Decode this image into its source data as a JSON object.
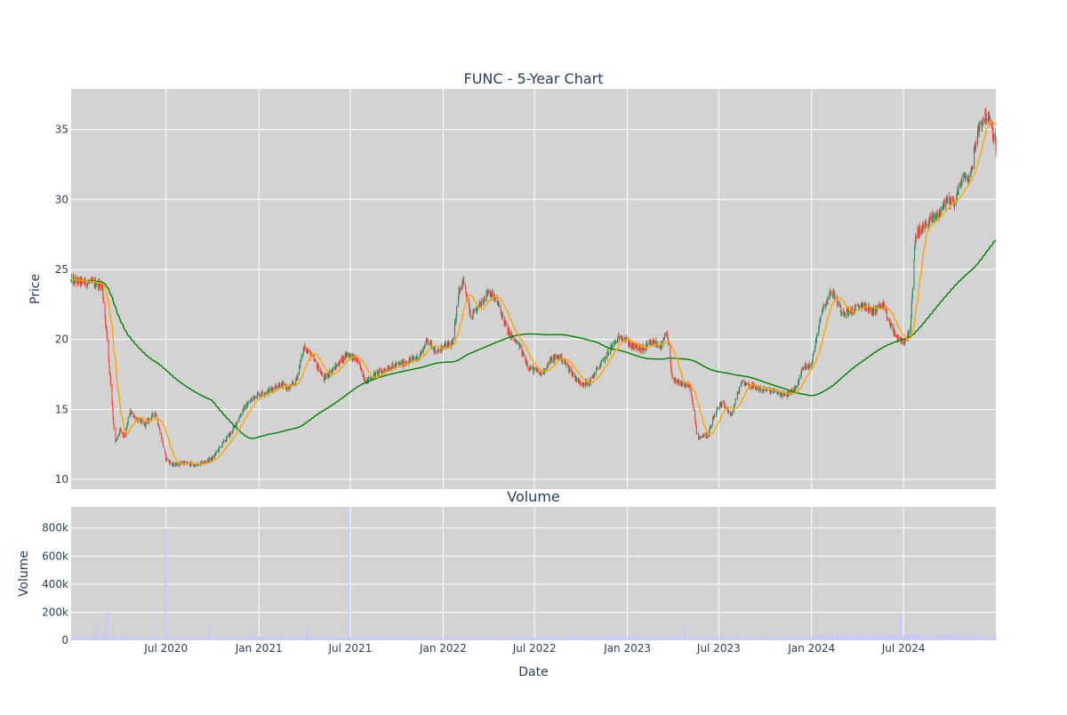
{
  "chart_data": [
    {
      "type": "candlestick",
      "title": "FUNC - 5-Year Chart",
      "xlabel": "",
      "ylabel": "Price",
      "ylim": [
        9.3,
        37.9
      ],
      "yticks": [
        10,
        15,
        20,
        25,
        30,
        35
      ],
      "grid": true,
      "legend": "none",
      "xrange": [
        "2019-12-26",
        "2024-12-31"
      ],
      "xtick_dates": [
        "2020-07-01",
        "2021-01-01",
        "2021-07-01",
        "2022-01-01",
        "2022-07-01",
        "2023-01-01",
        "2023-07-01",
        "2024-01-01",
        "2024-07-01"
      ],
      "price_anchors": {
        "x": [
          "2019-12-26",
          "2020-01-15",
          "2020-02-15",
          "2020-02-25",
          "2020-03-05",
          "2020-03-15",
          "2020-03-22",
          "2020-04-01",
          "2020-04-10",
          "2020-04-20",
          "2020-05-05",
          "2020-05-20",
          "2020-06-10",
          "2020-07-01",
          "2020-07-15",
          "2020-08-01",
          "2020-09-01",
          "2020-10-01",
          "2020-10-20",
          "2020-11-10",
          "2020-12-01",
          "2020-12-25",
          "2021-01-20",
          "2021-02-10",
          "2021-03-01",
          "2021-03-15",
          "2021-04-01",
          "2021-04-20",
          "2021-05-10",
          "2021-06-01",
          "2021-06-25",
          "2021-07-15",
          "2021-08-01",
          "2021-08-20",
          "2021-09-15",
          "2021-10-15",
          "2021-11-15",
          "2021-12-01",
          "2021-12-20",
          "2022-01-01",
          "2022-01-20",
          "2022-02-01",
          "2022-02-10",
          "2022-02-25",
          "2022-03-15",
          "2022-04-01",
          "2022-04-20",
          "2022-05-10",
          "2022-06-01",
          "2022-06-20",
          "2022-07-15",
          "2022-08-01",
          "2022-08-20",
          "2022-09-10",
          "2022-09-25",
          "2022-10-15",
          "2022-11-01",
          "2022-11-15",
          "2022-12-01",
          "2022-12-20",
          "2023-01-10",
          "2023-02-01",
          "2023-02-20",
          "2023-03-10",
          "2023-03-20",
          "2023-04-01",
          "2023-04-20",
          "2023-05-05",
          "2023-05-20",
          "2023-06-10",
          "2023-06-25",
          "2023-07-10",
          "2023-07-25",
          "2023-08-15",
          "2023-09-15",
          "2023-10-15",
          "2023-11-10",
          "2023-12-01",
          "2023-12-15",
          "2024-01-01",
          "2024-01-20",
          "2024-02-10",
          "2024-03-01",
          "2024-03-20",
          "2024-04-10",
          "2024-05-01",
          "2024-05-20",
          "2024-06-05",
          "2024-06-20",
          "2024-07-05",
          "2024-07-15",
          "2024-07-25",
          "2024-08-05",
          "2024-08-20",
          "2024-09-05",
          "2024-09-25",
          "2024-10-10",
          "2024-10-25",
          "2024-11-10",
          "2024-11-25",
          "2024-12-10",
          "2024-12-20",
          "2024-12-31"
        ],
        "y": [
          24.2,
          24.1,
          24.0,
          23.9,
          20.5,
          16.0,
          12.5,
          13.5,
          13.0,
          14.8,
          14.3,
          13.9,
          14.8,
          11.5,
          11.0,
          11.2,
          11.0,
          11.5,
          12.5,
          13.5,
          15.0,
          16.0,
          16.3,
          16.8,
          16.5,
          17.0,
          19.5,
          18.5,
          17.2,
          18.0,
          19.0,
          18.5,
          17.0,
          17.5,
          18.0,
          18.3,
          18.8,
          20.0,
          19.0,
          19.5,
          19.7,
          23.5,
          24.2,
          21.5,
          22.5,
          23.5,
          22.5,
          20.5,
          19.5,
          18.0,
          17.5,
          18.5,
          18.8,
          17.8,
          17.0,
          16.8,
          17.8,
          18.5,
          19.5,
          20.3,
          19.5,
          19.3,
          19.8,
          19.5,
          20.5,
          17.0,
          16.8,
          16.6,
          13.0,
          13.2,
          14.8,
          15.5,
          14.5,
          17.0,
          16.5,
          16.3,
          16.0,
          16.5,
          18.0,
          18.3,
          22.0,
          23.5,
          22.0,
          22.0,
          22.5,
          22.0,
          22.5,
          21.0,
          20.0,
          19.8,
          21.0,
          27.5,
          27.8,
          28.5,
          28.8,
          30.0,
          29.8,
          31.5,
          31.5,
          35.0,
          36.0,
          35.5,
          33.8
        ]
      },
      "series": [
        {
          "name": "",
          "kind": "ohlc",
          "up_color": "#2e8b57",
          "down_color": "#ff4136"
        },
        {
          "name": "",
          "kind": "moving-average",
          "window": 20,
          "color": "#ffa500"
        },
        {
          "name": "",
          "kind": "moving-average",
          "window": 200,
          "color": "#008000"
        }
      ]
    },
    {
      "type": "bar",
      "title": "Volume",
      "xlabel": "Date",
      "ylabel": "Volume",
      "ylim": [
        0,
        950000
      ],
      "yticks": [
        0,
        200000,
        400000,
        600000,
        800000
      ],
      "ytick_labels": [
        "0",
        "200k",
        "400k",
        "600k",
        "800k"
      ],
      "xtick_labels": [
        "Jul 2020",
        "Jan 2021",
        "Jul 2021",
        "Jan 2022",
        "Jul 2022",
        "Jan 2023",
        "Jul 2023",
        "Jan 2024",
        "Jul 2024"
      ],
      "bar_color": "#c8c8ff",
      "volume_spikes": [
        {
          "x": "2020-02-15",
          "value": 120000
        },
        {
          "x": "2020-03-05",
          "value": 200000
        },
        {
          "x": "2020-06-30",
          "value": 790000
        },
        {
          "x": "2020-09-25",
          "value": 110000
        },
        {
          "x": "2020-12-20",
          "value": 80000
        },
        {
          "x": "2021-04-05",
          "value": 85000
        },
        {
          "x": "2021-06-28",
          "value": 940000
        },
        {
          "x": "2023-04-25",
          "value": 100000
        },
        {
          "x": "2024-06-25",
          "value": 195000
        }
      ]
    }
  ]
}
